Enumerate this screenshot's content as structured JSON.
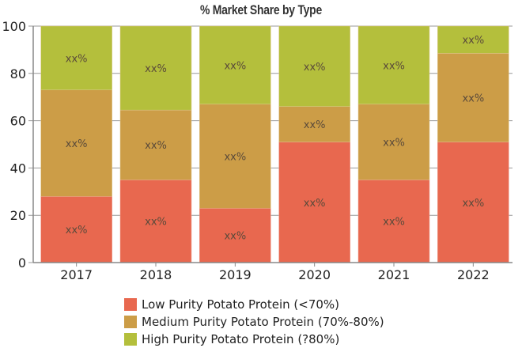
{
  "chart_data": {
    "type": "bar",
    "stacked": true,
    "title": "% Market Share by Type",
    "xlabel": "",
    "ylabel": "",
    "ylim": [
      0,
      100
    ],
    "yticks": [
      0,
      20,
      40,
      60,
      80,
      100
    ],
    "grid": true,
    "legend_position": "bottom",
    "categories": [
      "2017",
      "2018",
      "2019",
      "2020",
      "2021",
      "2022"
    ],
    "series": [
      {
        "name": "Low Purity Potato Protein (<70%)",
        "color": "#e8684f",
        "values": [
          28,
          35,
          23,
          51,
          35,
          51
        ]
      },
      {
        "name": "Medium Purity Potato Protein (70%-80%)",
        "color": "#cc9d47",
        "values": [
          45,
          29.5,
          44,
          15,
          32,
          37.5
        ]
      },
      {
        "name": "High Purity Potato Protein (?80%)",
        "color": "#b4bf3c",
        "values": [
          27,
          35.5,
          33,
          34,
          33,
          11.5
        ]
      }
    ],
    "data_labels": "xx%"
  }
}
